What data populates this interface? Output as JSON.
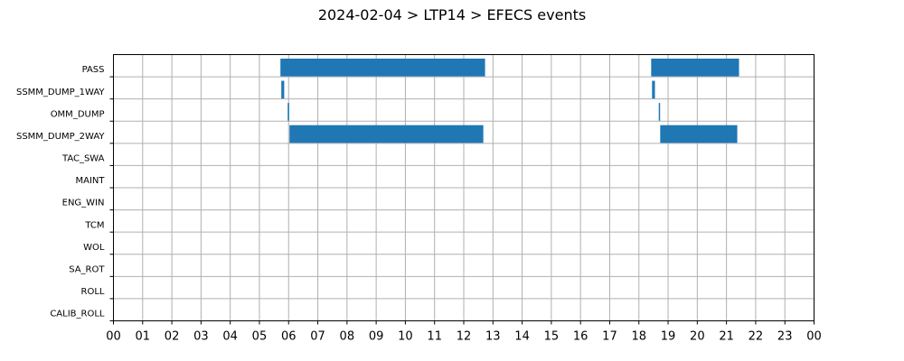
{
  "chart_data": {
    "type": "bar",
    "orientation": "horizontal",
    "title": "2024-02-04 > LTP14 > EFECS events",
    "xlabel": "",
    "ylabel": "",
    "xlim": [
      0,
      24
    ],
    "x_tick_labels": [
      "00",
      "01",
      "02",
      "03",
      "04",
      "05",
      "06",
      "07",
      "08",
      "09",
      "10",
      "11",
      "12",
      "13",
      "14",
      "15",
      "16",
      "17",
      "18",
      "19",
      "20",
      "21",
      "22",
      "23",
      "00"
    ],
    "categories": [
      "PASS",
      "SSMM_DUMP_1WAY",
      "OMM_DUMP",
      "SSMM_DUMP_2WAY",
      "TAC_SWA",
      "MAINT",
      "ENG_WIN",
      "TCM",
      "WOL",
      "SA_ROT",
      "ROLL",
      "CALIB_ROLL"
    ],
    "grid": true,
    "bar_color": "#1f77b4",
    "events": [
      {
        "category": "PASS",
        "start": 5.72,
        "end": 12.73
      },
      {
        "category": "PASS",
        "start": 18.42,
        "end": 21.43
      },
      {
        "category": "SSMM_DUMP_1WAY",
        "start": 5.75,
        "end": 5.85
      },
      {
        "category": "SSMM_DUMP_1WAY",
        "start": 18.45,
        "end": 18.55
      },
      {
        "category": "OMM_DUMP",
        "start": 5.97,
        "end": 6.02
      },
      {
        "category": "OMM_DUMP",
        "start": 18.68,
        "end": 18.72
      },
      {
        "category": "SSMM_DUMP_2WAY",
        "start": 6.03,
        "end": 12.67
      },
      {
        "category": "SSMM_DUMP_2WAY",
        "start": 18.73,
        "end": 21.37
      }
    ]
  }
}
